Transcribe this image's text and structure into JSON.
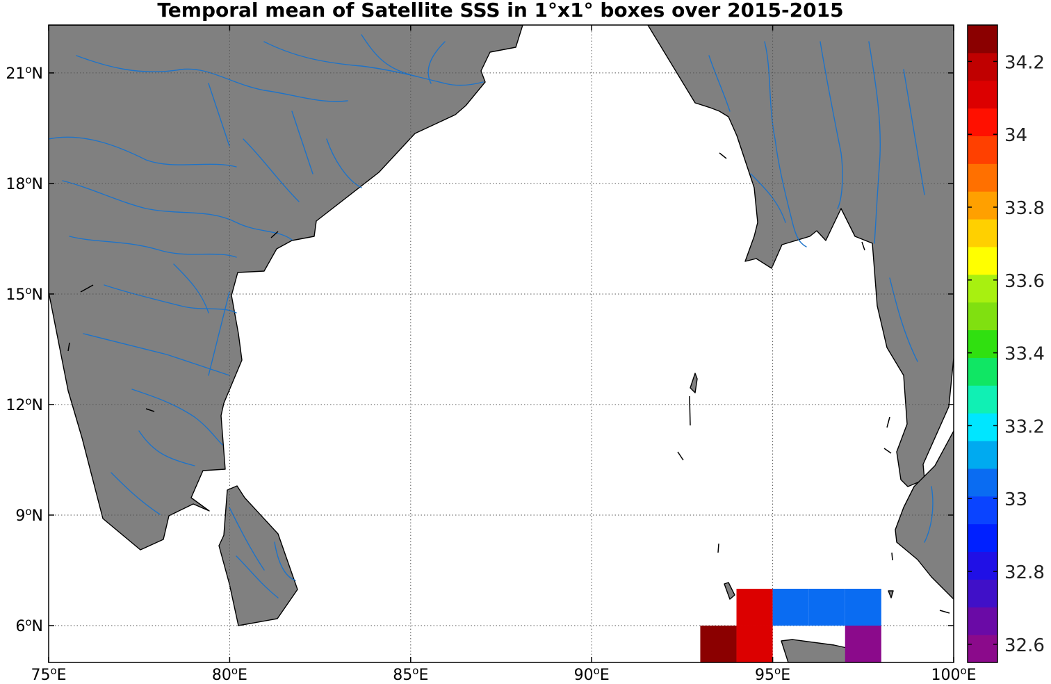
{
  "title": "Temporal mean of Satellite SSS in 1°x1° boxes over 2015-2015",
  "map": {
    "lon_range": [
      75,
      100
    ],
    "lat_range": [
      5,
      22.3
    ],
    "lon_ticks": [
      75,
      80,
      85,
      90,
      95,
      100
    ],
    "lat_ticks": [
      6,
      9,
      12,
      15,
      18,
      21
    ],
    "lon_tick_labels": [
      "75",
      "80",
      "85",
      "90",
      "95",
      "100"
    ],
    "lat_tick_labels": [
      "6",
      "9",
      "12",
      "15",
      "18",
      "21"
    ],
    "lon_suffix": "E",
    "lat_suffix": "N",
    "degree_symbol": "o",
    "grid": true,
    "land_color": "#808080",
    "river_color": "#1e73c8"
  },
  "chart_data": {
    "type": "heatmap",
    "title": "Temporal mean of Satellite SSS in 1°x1° boxes over 2015-2015",
    "cells": [
      {
        "lon": 93,
        "lat": 5,
        "value": 34.25
      },
      {
        "lon": 94,
        "lat": 5,
        "value": 34.12
      },
      {
        "lon": 94,
        "lat": 6,
        "value": 34.12
      },
      {
        "lon": 95,
        "lat": 6,
        "value": 33.02
      },
      {
        "lon": 96,
        "lat": 6,
        "value": 33.02
      },
      {
        "lon": 97,
        "lat": 6,
        "value": 33.02
      },
      {
        "lon": 97,
        "lat": 5,
        "value": 32.62
      }
    ],
    "colorbar": {
      "min": 32.55,
      "max": 34.3,
      "tick_values": [
        32.6,
        32.8,
        33,
        33.2,
        33.4,
        33.6,
        33.8,
        34,
        34.2
      ],
      "tick_labels": [
        "32.6",
        "32.8",
        "33",
        "33.2",
        "33.4",
        "33.6",
        "33.8",
        "34",
        "34.2"
      ],
      "colors": [
        "#8b0a8b",
        "#6a0aa6",
        "#4010c8",
        "#2010e6",
        "#0020ff",
        "#0a44ff",
        "#0a6cf2",
        "#00aaf0",
        "#00e6ff",
        "#10f0b4",
        "#10e664",
        "#30e010",
        "#80e010",
        "#a8f010",
        "#ffff00",
        "#ffd000",
        "#ffa000",
        "#ff7000",
        "#ff4000",
        "#ff1000",
        "#dc0000",
        "#c00000",
        "#8b0000"
      ]
    }
  }
}
